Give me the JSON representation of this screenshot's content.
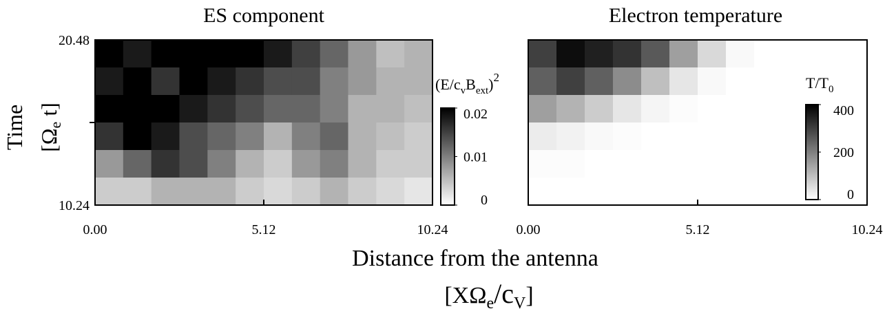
{
  "figure": {
    "xlabel": "Distance from the antenna",
    "xlabel_units": [
      "[XΩ",
      "e",
      "/c",
      "V",
      "]"
    ],
    "ylabel": "Time",
    "ylabel_units": [
      "[Ω",
      "e",
      " t]"
    ]
  },
  "chart_data": [
    {
      "type": "heatmap",
      "title": "ES component",
      "xlim": [
        0,
        10.24
      ],
      "xticks": [
        {
          "value": 0,
          "label": "0.00"
        },
        5.12,
        10.24
      ],
      "ylim": [
        10.24,
        20.48
      ],
      "yticks": [
        10.24,
        20.48
      ],
      "yminorticks": [
        15.36
      ],
      "z": [
        [
          0.02,
          0.018,
          0.02,
          0.02,
          0.02,
          0.02,
          0.018,
          0.015,
          0.012,
          0.008,
          0.005,
          0.006
        ],
        [
          0.018,
          0.02,
          0.016,
          0.02,
          0.018,
          0.016,
          0.014,
          0.014,
          0.01,
          0.008,
          0.006,
          0.006
        ],
        [
          0.02,
          0.02,
          0.02,
          0.018,
          0.016,
          0.014,
          0.012,
          0.012,
          0.01,
          0.006,
          0.006,
          0.005
        ],
        [
          0.016,
          0.02,
          0.018,
          0.014,
          0.012,
          0.01,
          0.006,
          0.01,
          0.012,
          0.006,
          0.005,
          0.004
        ],
        [
          0.008,
          0.012,
          0.016,
          0.014,
          0.01,
          0.006,
          0.004,
          0.008,
          0.01,
          0.006,
          0.004,
          0.004
        ],
        [
          0.004,
          0.004,
          0.006,
          0.006,
          0.006,
          0.004,
          0.003,
          0.004,
          0.006,
          0.004,
          0.003,
          0.002
        ]
      ],
      "colorbar": {
        "label": [
          "(E/c",
          "v",
          "B",
          "ext",
          ")",
          "2"
        ],
        "clim": [
          0,
          0.02
        ],
        "ticks": [
          0,
          0.01,
          0.02
        ]
      }
    },
    {
      "type": "heatmap",
      "title": "Electron temperature",
      "xlim": [
        0,
        10.24
      ],
      "xticks": [
        {
          "value": 0,
          "label": "0.00"
        },
        5.12,
        10.24
      ],
      "ylim": [
        10.24,
        20.48
      ],
      "z": [
        [
          300,
          380,
          350,
          320,
          260,
          150,
          60,
          10,
          0,
          0,
          0,
          0
        ],
        [
          250,
          300,
          250,
          180,
          100,
          40,
          10,
          0,
          0,
          0,
          0,
          0
        ],
        [
          150,
          120,
          80,
          40,
          15,
          5,
          0,
          0,
          0,
          0,
          0,
          0
        ],
        [
          30,
          20,
          10,
          5,
          0,
          0,
          0,
          0,
          0,
          0,
          0,
          0
        ],
        [
          5,
          5,
          0,
          0,
          0,
          0,
          0,
          0,
          0,
          0,
          0,
          0
        ],
        [
          0,
          0,
          0,
          0,
          0,
          0,
          0,
          0,
          0,
          0,
          0,
          0
        ]
      ],
      "colorbar": {
        "label": [
          "T/T",
          "0"
        ],
        "clim": [
          0,
          400
        ],
        "ticks": [
          0,
          200,
          400
        ]
      }
    }
  ]
}
